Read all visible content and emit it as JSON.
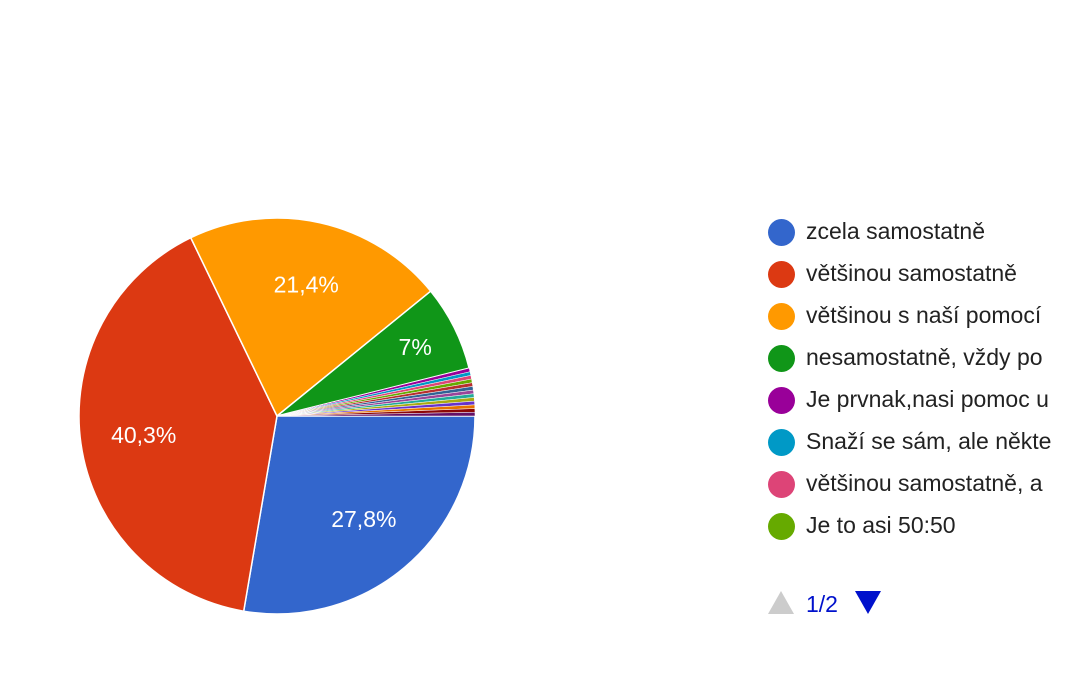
{
  "chart_data": {
    "type": "pie",
    "title": "",
    "start_angle_deg": 90,
    "slices": [
      {
        "label": "zcela samostatně",
        "value": 27.8,
        "display": "27,8%",
        "color": "#3366cc"
      },
      {
        "label": "většinou samostatně",
        "value": 40.3,
        "display": "40,3%",
        "color": "#dc3912"
      },
      {
        "label": "většinou s naší pomocí",
        "value": 21.4,
        "display": "21,4%",
        "color": "#ff9900"
      },
      {
        "label": "nesamostatně, vždy po",
        "value": 7.0,
        "display": "7%",
        "color": "#109618"
      },
      {
        "label": "Je prvnak,nasi pomoc u",
        "value": 0.3,
        "display": "",
        "color": "#990099"
      },
      {
        "label": "Snaží se sám, ale někte",
        "value": 0.3,
        "display": "",
        "color": "#0099c6"
      },
      {
        "label": "většinou samostatně, a",
        "value": 0.3,
        "display": "",
        "color": "#dd4477"
      },
      {
        "label": "Je to asi 50:50",
        "value": 0.3,
        "display": "",
        "color": "#66aa00"
      },
      {
        "label": "",
        "value": 0.3,
        "display": "",
        "color": "#b82e2e"
      },
      {
        "label": "",
        "value": 0.3,
        "display": "",
        "color": "#316395"
      },
      {
        "label": "",
        "value": 0.3,
        "display": "",
        "color": "#994499"
      },
      {
        "label": "",
        "value": 0.3,
        "display": "",
        "color": "#22aa99"
      },
      {
        "label": "",
        "value": 0.3,
        "display": "",
        "color": "#aaaa11"
      },
      {
        "label": "",
        "value": 0.3,
        "display": "",
        "color": "#6633cc"
      },
      {
        "label": "",
        "value": 0.3,
        "display": "",
        "color": "#e67300"
      },
      {
        "label": "",
        "value": 0.3,
        "display": "",
        "color": "#8b0707"
      },
      {
        "label": "",
        "value": 0.3,
        "display": "",
        "color": "#651067"
      }
    ],
    "legend_position": "right"
  },
  "legend": {
    "items": [
      {
        "label": "zcela samostatně",
        "color": "#3366cc"
      },
      {
        "label": "většinou samostatně",
        "color": "#dc3912"
      },
      {
        "label": "většinou s naší pomocí",
        "color": "#ff9900"
      },
      {
        "label": "nesamostatně, vždy po",
        "color": "#109618"
      },
      {
        "label": "Je prvnak,nasi pomoc u",
        "color": "#990099"
      },
      {
        "label": "Snaží se sám, ale někte",
        "color": "#0099c6"
      },
      {
        "label": "většinou samostatně, a",
        "color": "#dd4477"
      },
      {
        "label": "Je to asi 50:50",
        "color": "#66aa00"
      }
    ]
  },
  "pager": {
    "text": "1/2",
    "prev_icon": "triangle-up-icon",
    "next_icon": "triangle-down-icon",
    "active_color": "#0011cc",
    "inactive_color": "#cccccc"
  }
}
